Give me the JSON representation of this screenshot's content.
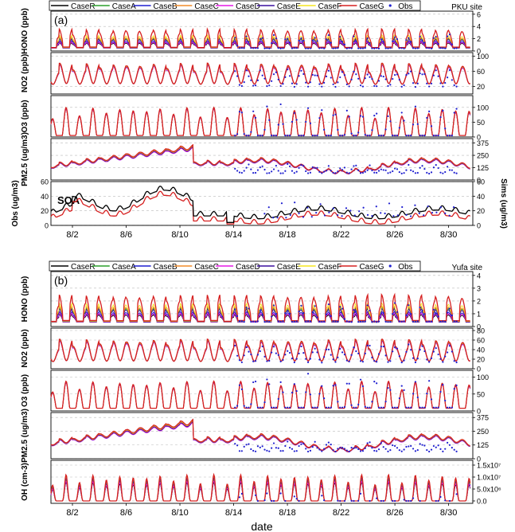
{
  "legend": {
    "entries": [
      "CaseR",
      "CaseA",
      "CaseB",
      "CaseC",
      "CaseD",
      "CaseE",
      "CaseF",
      "CaseG",
      "Obs"
    ],
    "colors": [
      "#000000",
      "#2ca02c",
      "#1f1fd0",
      "#f28c28",
      "#e619e6",
      "#3a0f9e",
      "#f5e61e",
      "#d62020",
      "#1f1fd0"
    ]
  },
  "chart_data": [
    {
      "type": "line",
      "panel_label": "(a)",
      "site": "PKU site",
      "x": [
        "8/2",
        "8/6",
        "8/10",
        "8/14",
        "8/18",
        "8/22",
        "8/26",
        "8/30"
      ],
      "xlim": [
        "7/31",
        "8/31"
      ],
      "subplots": [
        {
          "ylabel": "HONO (ppb)",
          "yticks": [
            0,
            2,
            4,
            6
          ],
          "ylim": [
            0,
            6.5
          ],
          "series": [
            "CaseR",
            "CaseA",
            "CaseB",
            "CaseC",
            "CaseD",
            "CaseE",
            "CaseF",
            "CaseG",
            "Obs"
          ],
          "obs_from": "8/14",
          "model_peak": [
            2.5,
            3.5
          ],
          "obs_peak": 2.5
        },
        {
          "ylabel": "NO2 (ppb)",
          "yticks": [
            20,
            60,
            100
          ],
          "ylim": [
            0,
            110
          ],
          "series": [
            "CaseR",
            "CaseA",
            "CaseB",
            "CaseC",
            "CaseD",
            "CaseE",
            "CaseF",
            "CaseG",
            "Obs"
          ],
          "obs_from": "8/14",
          "model_range": [
            15,
            85
          ]
        },
        {
          "ylabel": "O3 (ppb)",
          "yticks": [
            0,
            50,
            100
          ],
          "ylim": [
            0,
            140
          ],
          "series": [
            "CaseR",
            "CaseA",
            "CaseB",
            "CaseC",
            "CaseD",
            "CaseE",
            "CaseF",
            "CaseG",
            "Obs"
          ],
          "obs_from": "8/14",
          "model_peak": 100
        },
        {
          "ylabel": "PM2.5 (ug/m3)",
          "yticks": [
            0,
            125,
            250,
            375
          ],
          "ylim": [
            0,
            420
          ],
          "series": [
            "CaseR",
            "CaseA",
            "CaseB",
            "CaseC",
            "CaseD",
            "CaseE",
            "CaseF",
            "CaseG",
            "Obs"
          ],
          "obs_from": "8/14",
          "model_range": [
            60,
            350
          ]
        },
        {
          "ylabel": "Obs (ug/m3)",
          "ylabel_right": "Sims (ug/m3)",
          "annotation": "SOA",
          "yticks": [
            0,
            20,
            40,
            60
          ],
          "yticks_right": [
            0,
            10,
            20,
            30
          ],
          "ylim": [
            0,
            60
          ],
          "series": [
            "Obs",
            "Sims"
          ],
          "series_colors": [
            "#000000",
            "#d62020"
          ]
        }
      ]
    },
    {
      "type": "line",
      "panel_label": "(b)",
      "site": "Yufa site",
      "x": [
        "8/2",
        "8/6",
        "8/10",
        "8/14",
        "8/18",
        "8/22",
        "8/26",
        "8/30"
      ],
      "xlabel": "date",
      "xlim": [
        "7/31",
        "8/31"
      ],
      "subplots": [
        {
          "ylabel": "HONO (ppb)",
          "yticks": [
            0,
            1,
            2,
            3,
            4
          ],
          "ylim": [
            0,
            4.3
          ],
          "series": [
            "CaseR",
            "CaseA",
            "CaseB",
            "CaseC",
            "CaseD",
            "CaseE",
            "CaseF",
            "CaseG",
            "Obs"
          ],
          "obs_from": "8/14",
          "model_peak": [
            1.5,
            4.2
          ]
        },
        {
          "ylabel": "NO2 (ppb)",
          "yticks": [
            0,
            20,
            40,
            60,
            80
          ],
          "ylim": [
            0,
            85
          ],
          "series": [
            "CaseR",
            "CaseA",
            "CaseB",
            "CaseC",
            "CaseD",
            "CaseE",
            "CaseF",
            "CaseG",
            "Obs"
          ],
          "obs_from": "8/14",
          "model_range": [
            10,
            70
          ]
        },
        {
          "ylabel": "O3 (ppb)",
          "yticks": [
            0,
            50,
            100
          ],
          "ylim": [
            0,
            120
          ],
          "series": [
            "CaseR",
            "CaseA",
            "CaseB",
            "CaseC",
            "CaseD",
            "CaseE",
            "CaseF",
            "CaseG",
            "Obs"
          ],
          "obs_from": "8/14",
          "model_peak": 90
        },
        {
          "ylabel": "PM2.5 (ug/m3)",
          "yticks": [
            0,
            125,
            250,
            375
          ],
          "ylim": [
            0,
            420
          ],
          "series": [
            "CaseR",
            "CaseA",
            "CaseB",
            "CaseC",
            "CaseD",
            "CaseE",
            "CaseF",
            "CaseG",
            "Obs"
          ],
          "obs_from": "8/14",
          "model_range": [
            50,
            380
          ]
        },
        {
          "ylabel": "OH (cm-3)",
          "yticks": [
            0.0,
            5000000.0,
            10000000.0,
            15000000.0
          ],
          "ytick_labels": [
            "0.0",
            "5.0x10⁶",
            "1.0x10⁷",
            "1.5x10⁷"
          ],
          "ylim": [
            -1000000.0,
            17000000.0
          ],
          "series": [
            "CaseR",
            "CaseA",
            "CaseB",
            "CaseC",
            "CaseD",
            "CaseE",
            "CaseF",
            "CaseG",
            "Obs"
          ],
          "obs_from": "8/14",
          "model_peak": 12000000.0
        }
      ]
    }
  ]
}
